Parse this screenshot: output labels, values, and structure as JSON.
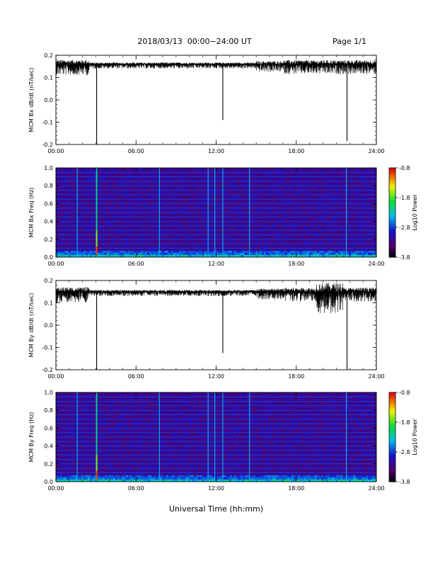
{
  "header": {
    "title": "2018/03/13  00:00−24:00 UT",
    "page": "Page 1/1"
  },
  "xaxis_label": "Universal Time (hh:mm)",
  "chart_data": [
    {
      "type": "line",
      "ylabel": "MCM Bx dB/dt (nT/sec)",
      "xlim": [
        0,
        24
      ],
      "ylim": [
        -0.2,
        0.2
      ],
      "xticks": [
        "00:00",
        "06:00",
        "12:00",
        "18:00",
        "24:00"
      ],
      "yticks": [
        "-0.2",
        "-0.1",
        "0.0",
        "0.1",
        "0.2"
      ],
      "baseline": 0.16,
      "spikes": [
        {
          "x": 3.05,
          "y": -0.2
        },
        {
          "x": 12.5,
          "y": -0.09
        },
        {
          "x": 21.8,
          "y": -0.185
        }
      ]
    },
    {
      "type": "heatmap",
      "ylabel": "MCM Bx Freq (Hz)",
      "xlim": [
        0,
        24
      ],
      "ylim": [
        0,
        1.0
      ],
      "xticks": [
        "00:00",
        "06:00",
        "12:00",
        "18:00",
        "24:00"
      ],
      "yticks": [
        "0.0",
        "0.2",
        "0.4",
        "0.6",
        "0.8",
        "1.0"
      ],
      "colorbar": {
        "label": "Log10 Power",
        "ticks": [
          "-0.8",
          "-1.8",
          "-2.8",
          "-3.8"
        ],
        "range": [
          -3.8,
          -0.8
        ]
      },
      "vertical_events_h": [
        1.6,
        3.05,
        7.75,
        11.4,
        11.9,
        12.5,
        14.5,
        21.75
      ],
      "horizontal_lines_hz": [
        0.05,
        0.1,
        0.15,
        0.2,
        0.25,
        0.3,
        0.35,
        0.4,
        0.45,
        0.5,
        0.55,
        0.6,
        0.65,
        0.7,
        0.75,
        0.8,
        0.85,
        0.9,
        0.95
      ]
    },
    {
      "type": "line",
      "ylabel": "MCM By dB/dt (nT/sec)",
      "xlim": [
        0,
        24
      ],
      "ylim": [
        -0.2,
        0.2
      ],
      "xticks": [
        "00:00",
        "06:00",
        "12:00",
        "18:00",
        "24:00"
      ],
      "yticks": [
        "-0.2",
        "-0.1",
        "0.0",
        "0.1",
        "0.2"
      ],
      "baseline": 0.15,
      "spikes": [
        {
          "x": 3.05,
          "y": -0.2
        },
        {
          "x": 12.5,
          "y": -0.125
        },
        {
          "x": 21.8,
          "y": -0.2
        }
      ]
    },
    {
      "type": "heatmap",
      "ylabel": "MCM By Freq (Hz)",
      "xlim": [
        0,
        24
      ],
      "ylim": [
        0,
        1.0
      ],
      "xticks": [
        "00:00",
        "06:00",
        "12:00",
        "18:00",
        "24:00"
      ],
      "yticks": [
        "0.0",
        "0.2",
        "0.4",
        "0.6",
        "0.8",
        "1.0"
      ],
      "colorbar": {
        "label": "Log10 Power",
        "ticks": [
          "-0.8",
          "-1.8",
          "-2.8",
          "-3.8"
        ],
        "range": [
          -3.8,
          -0.8
        ]
      },
      "vertical_events_h": [
        1.6,
        3.05,
        7.75,
        11.4,
        11.9,
        12.5,
        14.5,
        21.75
      ],
      "horizontal_lines_hz": [
        0.05,
        0.1,
        0.15,
        0.2,
        0.25,
        0.3,
        0.35,
        0.4,
        0.45,
        0.5,
        0.55,
        0.6,
        0.65,
        0.7,
        0.75,
        0.8,
        0.85,
        0.9,
        0.95
      ]
    }
  ]
}
